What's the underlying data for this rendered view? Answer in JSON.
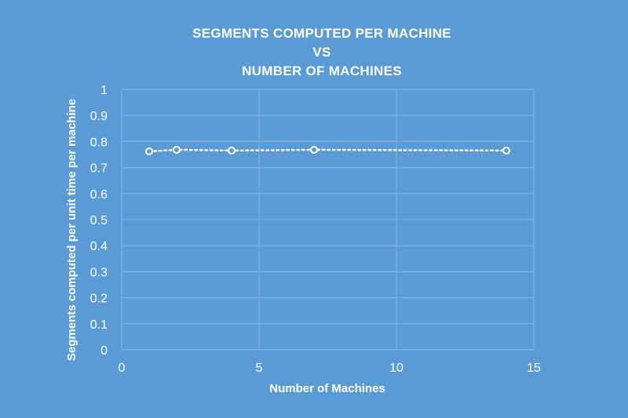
{
  "chart_data": {
    "type": "scatter",
    "title_lines": [
      "SEGMENTS COMPUTED PER MACHINE",
      "VS",
      "NUMBER OF MACHINES"
    ],
    "xlabel": "Number of Machines",
    "ylabel": "Segments computed per unit time per machine",
    "xlim": [
      0,
      15
    ],
    "ylim": [
      0,
      1
    ],
    "x_ticks": [
      "0",
      "5",
      "10",
      "15"
    ],
    "y_ticks": [
      "0",
      "0.1",
      "0.2",
      "0.3",
      "0.4",
      "0.5",
      "0.6",
      "0.7",
      "0.8",
      "0.9",
      "1"
    ],
    "grid": true,
    "legend": "none",
    "series": [
      {
        "x": [
          1,
          2,
          4,
          7,
          14
        ],
        "y": [
          0.762,
          0.768,
          0.765,
          0.768,
          0.765
        ]
      }
    ],
    "colors": {
      "background": "#5b9bd5",
      "grid": "#86b9e6",
      "series": "#ffffff"
    }
  }
}
